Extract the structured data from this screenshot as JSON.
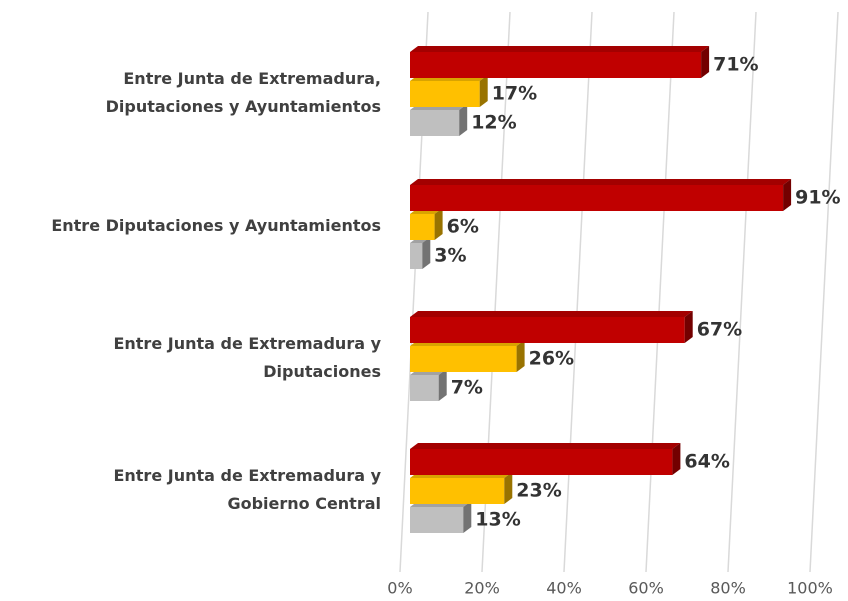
{
  "chart_data": {
    "type": "bar3d-horizontal",
    "categories": [
      [
        "Entre Junta de Extremadura,",
        "Diputaciones y Ayuntamientos"
      ],
      [
        "Entre Diputaciones y Ayuntamientos"
      ],
      [
        "Entre Junta de Extremadura y",
        "Diputaciones"
      ],
      [
        "Entre Junta de Extremadura y",
        "Gobierno Central"
      ]
    ],
    "series": [
      {
        "color": "#c00000",
        "values": [
          71,
          91,
          67,
          64
        ],
        "value_labels": [
          "71%",
          "91%",
          "67%",
          "64%"
        ]
      },
      {
        "color": "#ffc000",
        "values": [
          17,
          6,
          26,
          23
        ],
        "value_labels": [
          "17%",
          "6%",
          "26%",
          "23%"
        ]
      },
      {
        "color": "#bfbfbf",
        "values": [
          12,
          3,
          7,
          13
        ],
        "value_labels": [
          "12%",
          "3%",
          "7%",
          "13%"
        ]
      }
    ],
    "xlim": [
      0,
      100
    ],
    "xticks": [
      {
        "value": 0,
        "label": "0%"
      },
      {
        "value": 20,
        "label": "20%"
      },
      {
        "value": 40,
        "label": "40%"
      },
      {
        "value": 60,
        "label": "60%"
      },
      {
        "value": 80,
        "label": "80%"
      },
      {
        "value": 100,
        "label": "100%"
      }
    ],
    "grid": true
  }
}
